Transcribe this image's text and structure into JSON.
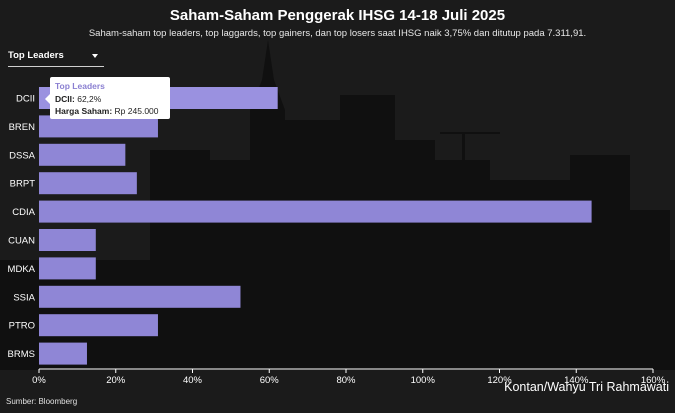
{
  "header": {
    "title": "Saham-Saham Penggerak IHSG 14-18 Juli 2025",
    "subtitle": "Saham-saham top leaders, top laggards, top gainers, dan top losers saat IHSG naik 3,75% dan ditutup pada 7.311,91."
  },
  "dropdown": {
    "selected": "Top Leaders"
  },
  "tooltip": {
    "title": "Top Leaders",
    "line1_label": "DCII:",
    "line1_value": "62,2%",
    "line2_label": "Harga Saham:",
    "line2_value": "Rp 245.000"
  },
  "footer": {
    "credit": "Kontan/Wahyu Tri Rahmawati",
    "source": "Sumber: Bloomberg"
  },
  "colors": {
    "bar": "#8f86d6",
    "bar_highlight": "#9a91e0",
    "axis": "#ffffff",
    "grid": "#3a3a3a",
    "background": "#1b1b1b",
    "skyline": "#101010"
  },
  "chart_data": {
    "type": "bar",
    "orientation": "horizontal",
    "categories": [
      "DCII",
      "BREN",
      "DSSA",
      "BRPT",
      "CDIA",
      "CUAN",
      "MDKA",
      "SSIA",
      "PTRO",
      "BRMS"
    ],
    "values": [
      62.2,
      31,
      22.5,
      25.5,
      144,
      14.8,
      14.8,
      52.5,
      31,
      12.5
    ],
    "xlim": [
      0,
      160
    ],
    "ticks": [
      0,
      20,
      40,
      60,
      80,
      100,
      120,
      140,
      160
    ],
    "tick_labels": [
      "0%",
      "20%",
      "40%",
      "60%",
      "80%",
      "100%",
      "120%",
      "140%",
      "160%"
    ],
    "highlighted": "DCII",
    "legend": "none",
    "grid": false
  }
}
